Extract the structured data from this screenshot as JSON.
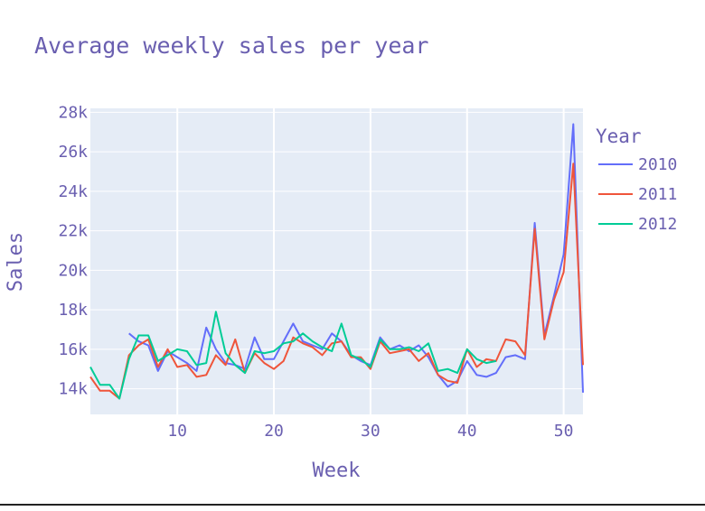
{
  "colors": {
    "plot_bg": "#e5ecf6",
    "grid": "#ffffff",
    "text": "#6a5fb0",
    "series": [
      "#636efa",
      "#ef553b",
      "#00cc96"
    ]
  },
  "chart_data": {
    "type": "line",
    "title": "Average weekly sales per year",
    "xlabel": "Week",
    "ylabel": "Sales",
    "xlim": [
      1,
      52
    ],
    "ylim": [
      12700,
      28200
    ],
    "x_ticks": [
      10,
      20,
      30,
      40,
      50
    ],
    "x_tick_labels": [
      "10",
      "20",
      "30",
      "40",
      "50"
    ],
    "y_ticks": [
      14000,
      16000,
      18000,
      20000,
      22000,
      24000,
      26000,
      28000
    ],
    "y_tick_labels": [
      "14k",
      "16k",
      "18k",
      "20k",
      "22k",
      "24k",
      "26k",
      "28k"
    ],
    "grid": true,
    "legend": {
      "title": "Year",
      "position": "right"
    },
    "series": [
      {
        "name": "2010",
        "x": [
          5,
          6,
          7,
          8,
          9,
          10,
          11,
          12,
          13,
          14,
          15,
          16,
          17,
          18,
          19,
          20,
          21,
          22,
          23,
          24,
          25,
          26,
          27,
          28,
          29,
          30,
          31,
          32,
          33,
          34,
          35,
          36,
          37,
          38,
          39,
          40,
          41,
          42,
          43,
          44,
          45,
          46,
          47,
          48,
          49,
          50,
          51,
          52
        ],
        "y": [
          16800,
          16400,
          16200,
          14900,
          15900,
          15600,
          15300,
          14900,
          17100,
          16000,
          15300,
          15200,
          15000,
          16600,
          15500,
          15500,
          16400,
          17300,
          16400,
          16200,
          16000,
          16800,
          16400,
          15700,
          15400,
          15200,
          16600,
          16000,
          16200,
          15900,
          16200,
          15600,
          14700,
          14100,
          14400,
          15400,
          14700,
          14600,
          14800,
          15600,
          15700,
          15500,
          22400,
          16700,
          18700,
          20800,
          27400,
          13800
        ]
      },
      {
        "name": "2011",
        "x": [
          1,
          2,
          3,
          4,
          5,
          6,
          7,
          8,
          9,
          10,
          11,
          12,
          13,
          14,
          15,
          16,
          17,
          18,
          19,
          20,
          21,
          22,
          23,
          24,
          25,
          26,
          27,
          28,
          29,
          30,
          31,
          32,
          33,
          34,
          35,
          36,
          37,
          38,
          39,
          40,
          41,
          42,
          43,
          44,
          45,
          46,
          47,
          48,
          49,
          50,
          51,
          52
        ],
        "y": [
          14600,
          13900,
          13900,
          13500,
          15700,
          16200,
          16500,
          15100,
          16000,
          15100,
          15200,
          14600,
          14700,
          15700,
          15200,
          16500,
          14800,
          15800,
          15300,
          15000,
          15400,
          16600,
          16300,
          16100,
          15700,
          16300,
          16400,
          15600,
          15600,
          15000,
          16400,
          15800,
          15900,
          16000,
          15400,
          15800,
          14700,
          14400,
          14300,
          16000,
          15100,
          15500,
          15400,
          16500,
          16400,
          15700,
          22100,
          16500,
          18500,
          19900,
          25400,
          15200
        ]
      },
      {
        "name": "2012",
        "x": [
          1,
          2,
          3,
          4,
          5,
          6,
          7,
          8,
          9,
          10,
          11,
          12,
          13,
          14,
          15,
          16,
          17,
          18,
          19,
          20,
          21,
          22,
          23,
          24,
          25,
          26,
          27,
          28,
          29,
          30,
          31,
          32,
          33,
          34,
          35,
          36,
          37,
          38,
          39,
          40,
          41,
          42,
          43
        ],
        "y": [
          15100,
          14200,
          14200,
          13500,
          15500,
          16700,
          16700,
          15400,
          15700,
          16000,
          15900,
          15200,
          15300,
          17900,
          15800,
          15200,
          14800,
          15900,
          15800,
          15900,
          16300,
          16400,
          16800,
          16400,
          16100,
          15900,
          17300,
          15700,
          15500,
          15100,
          16500,
          16000,
          16000,
          16100,
          15900,
          16300,
          14900,
          15000,
          14800,
          16000,
          15500,
          15300,
          15400
        ]
      }
    ]
  }
}
